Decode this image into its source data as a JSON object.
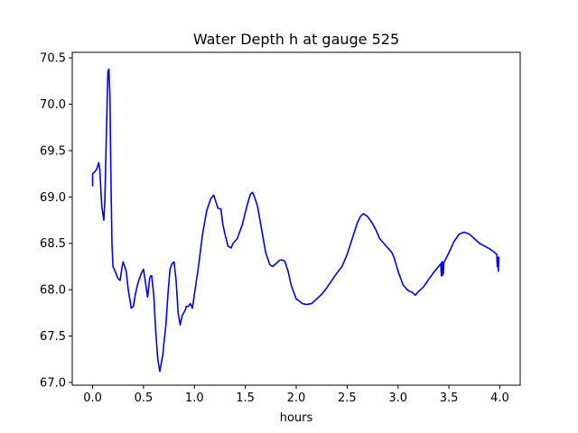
{
  "chart_data": {
    "type": "line",
    "title": "Water Depth h at gauge 525",
    "xlabel": "hours",
    "ylabel": "",
    "xlim": [
      -0.2,
      4.2
    ],
    "ylim": [
      66.97,
      70.56
    ],
    "xticks": [
      0.0,
      0.5,
      1.0,
      1.5,
      2.0,
      2.5,
      3.0,
      3.5,
      4.0
    ],
    "xtick_labels": [
      "0.0",
      "0.5",
      "1.0",
      "1.5",
      "2.0",
      "2.5",
      "3.0",
      "3.5",
      "4.0"
    ],
    "yticks": [
      67.0,
      67.5,
      68.0,
      68.5,
      69.0,
      69.5,
      70.0,
      70.5
    ],
    "ytick_labels": [
      "67.0",
      "67.5",
      "68.0",
      "68.5",
      "69.0",
      "69.5",
      "70.0",
      "70.5"
    ],
    "grid": false,
    "series": [
      {
        "color": "#0000ff",
        "x": [
          0.0,
          0.0,
          0.02,
          0.04,
          0.06,
          0.07,
          0.09,
          0.11,
          0.12,
          0.14,
          0.15,
          0.16,
          0.17,
          0.18,
          0.19,
          0.2,
          0.22,
          0.25,
          0.27,
          0.29,
          0.3,
          0.33,
          0.35,
          0.38,
          0.4,
          0.42,
          0.44,
          0.46,
          0.48,
          0.5,
          0.54,
          0.56,
          0.57,
          0.58,
          0.6,
          0.62,
          0.64,
          0.66,
          0.69,
          0.7,
          0.72,
          0.74,
          0.76,
          0.78,
          0.8,
          0.82,
          0.84,
          0.86,
          0.88,
          0.91,
          0.92,
          0.94,
          0.96,
          0.98,
          1.0,
          1.04,
          1.08,
          1.12,
          1.16,
          1.19,
          1.21,
          1.23,
          1.26,
          1.28,
          1.3,
          1.33,
          1.36,
          1.38,
          1.42,
          1.47,
          1.52,
          1.55,
          1.57,
          1.59,
          1.62,
          1.66,
          1.7,
          1.74,
          1.77,
          1.8,
          1.84,
          1.87,
          1.89,
          1.92,
          1.95,
          2.0,
          2.06,
          2.1,
          2.15,
          2.2,
          2.25,
          2.3,
          2.35,
          2.4,
          2.45,
          2.5,
          2.55,
          2.6,
          2.63,
          2.66,
          2.7,
          2.74,
          2.78,
          2.82,
          2.86,
          2.9,
          2.94,
          2.96,
          3.0,
          3.05,
          3.1,
          3.14,
          3.17,
          3.2,
          3.25,
          3.3,
          3.36,
          3.42,
          3.425,
          3.43,
          3.435,
          3.44,
          3.445,
          3.45,
          3.5,
          3.55,
          3.6,
          3.65,
          3.7,
          3.75,
          3.8,
          3.85,
          3.9,
          3.95,
          3.97,
          3.975,
          3.98,
          3.985,
          3.99
        ],
        "y": [
          69.12,
          69.25,
          69.27,
          69.3,
          69.37,
          69.3,
          68.9,
          68.75,
          68.95,
          69.9,
          70.35,
          70.38,
          70.1,
          69.2,
          68.5,
          68.25,
          68.2,
          68.12,
          68.1,
          68.25,
          68.3,
          68.2,
          68.0,
          67.8,
          67.82,
          67.95,
          68.05,
          68.12,
          68.18,
          68.22,
          67.92,
          68.12,
          68.15,
          68.15,
          67.95,
          67.55,
          67.25,
          67.12,
          67.3,
          67.42,
          67.62,
          67.95,
          68.22,
          68.28,
          68.3,
          68.1,
          67.75,
          67.62,
          67.72,
          67.78,
          67.82,
          67.82,
          67.85,
          67.8,
          67.95,
          68.25,
          68.6,
          68.85,
          68.98,
          69.02,
          68.95,
          68.88,
          68.87,
          68.7,
          68.6,
          68.47,
          68.45,
          68.5,
          68.55,
          68.7,
          68.92,
          69.03,
          69.05,
          69.0,
          68.9,
          68.65,
          68.4,
          68.27,
          68.25,
          68.28,
          68.32,
          68.32,
          68.3,
          68.2,
          68.05,
          67.9,
          67.85,
          67.84,
          67.85,
          67.9,
          67.95,
          68.02,
          68.1,
          68.18,
          68.25,
          68.38,
          68.55,
          68.72,
          68.79,
          68.82,
          68.79,
          68.73,
          68.65,
          68.55,
          68.5,
          68.45,
          68.4,
          68.35,
          68.2,
          68.05,
          67.99,
          67.97,
          67.94,
          67.98,
          68.03,
          68.11,
          68.2,
          68.28,
          68.15,
          68.3,
          68.15,
          68.3,
          68.17,
          68.29,
          68.4,
          68.52,
          68.6,
          68.62,
          68.6,
          68.55,
          68.5,
          68.47,
          68.44,
          68.4,
          68.38,
          68.25,
          68.35,
          68.2,
          68.35
        ]
      }
    ]
  }
}
